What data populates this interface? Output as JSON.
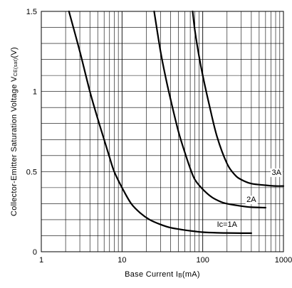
{
  "chart_data": {
    "type": "line",
    "title": "",
    "xlabel": "Base Current I",
    "xlabel_sub": "B",
    "xlabel_suffix": "(mA)",
    "ylabel": "Collector-Emitter Saturation Voltage V",
    "ylabel_sub": "CE(sat)",
    "ylabel_suffix": "(V)",
    "x_scale": "log",
    "xlim": [
      1,
      1000
    ],
    "ylim": [
      0,
      1.5
    ],
    "x_ticks": [
      1,
      10,
      100,
      1000
    ],
    "x_tick_labels": [
      "1",
      "10",
      "100",
      "1000"
    ],
    "y_ticks": [
      0,
      0.5,
      1,
      1.5
    ],
    "y_tick_labels": [
      "0",
      "0.5",
      "1",
      "1.5"
    ],
    "grid": true,
    "y_minor_step": 0.1,
    "series": [
      {
        "name": "Ic=1A",
        "x": [
          2.2,
          3,
          4,
          5,
          6,
          7,
          8,
          10,
          13,
          17,
          22,
          30,
          40,
          60,
          80,
          100,
          150,
          200,
          300,
          400
        ],
        "y": [
          1.5,
          1.25,
          1.0,
          0.83,
          0.7,
          0.59,
          0.5,
          0.4,
          0.3,
          0.24,
          0.2,
          0.17,
          0.15,
          0.135,
          0.127,
          0.122,
          0.118,
          0.117,
          0.116,
          0.116
        ]
      },
      {
        "name": "2A",
        "x": [
          25,
          30,
          35,
          40,
          50,
          60,
          70,
          80,
          100,
          130,
          170,
          200,
          300,
          400,
          600
        ],
        "y": [
          1.5,
          1.25,
          1.08,
          0.95,
          0.75,
          0.62,
          0.52,
          0.45,
          0.39,
          0.34,
          0.31,
          0.3,
          0.285,
          0.278,
          0.275
        ]
      },
      {
        "name": "3A",
        "x": [
          75,
          80,
          90,
          100,
          120,
          150,
          200,
          250,
          300,
          400,
          600,
          800,
          1000
        ],
        "y": [
          1.5,
          1.38,
          1.22,
          1.1,
          0.92,
          0.72,
          0.55,
          0.48,
          0.45,
          0.425,
          0.415,
          0.41,
          0.41
        ]
      }
    ],
    "series_labels": [
      {
        "text": "Ic=1A",
        "x": 200,
        "y": 0.155
      },
      {
        "text": "2A",
        "x": 400,
        "y": 0.31
      },
      {
        "text": "3A",
        "x": 820,
        "y": 0.48
      }
    ]
  }
}
